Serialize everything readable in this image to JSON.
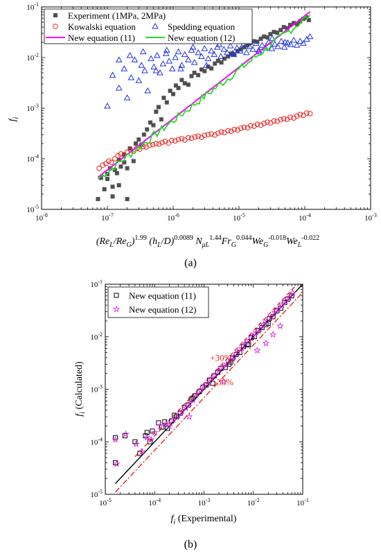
{
  "chart_data": [
    {
      "id": "a",
      "type": "scatter",
      "panel_label": "(a)",
      "xscale": "log",
      "yscale": "log",
      "xlim": [
        1e-08,
        0.001
      ],
      "ylim": [
        1e-05,
        0.1
      ],
      "xticks": [
        {
          "value": 1e-08,
          "mant": "10",
          "exp": "-8"
        },
        {
          "value": 1e-07,
          "mant": "10",
          "exp": "-7"
        },
        {
          "value": 1e-06,
          "mant": "10",
          "exp": "-6"
        },
        {
          "value": 1e-05,
          "mant": "10",
          "exp": "-5"
        },
        {
          "value": 0.0001,
          "mant": "10",
          "exp": "-4"
        },
        {
          "value": 0.001,
          "mant": "10",
          "exp": "-3"
        }
      ],
      "yticks": [
        {
          "value": 1e-05,
          "mant": "10",
          "exp": "-5"
        },
        {
          "value": 0.0001,
          "mant": "10",
          "exp": "-4"
        },
        {
          "value": 0.001,
          "mant": "10",
          "exp": "-3"
        },
        {
          "value": 0.01,
          "mant": "10",
          "exp": "-2"
        },
        {
          "value": 0.1,
          "mant": "10",
          "exp": "-1"
        }
      ],
      "ylabel": {
        "main": "f",
        "sub": "i"
      },
      "xlabel_parts": [
        {
          "t": "(Re",
          "i": true
        },
        {
          "t": "L",
          "i": true,
          "sub": true
        },
        {
          "t": "/Re",
          "i": true
        },
        {
          "t": "G",
          "i": true,
          "sub": true
        },
        {
          "t": ")",
          "i": true
        },
        {
          "t": "1.99",
          "sup": true
        },
        {
          "t": " (h",
          "i": true
        },
        {
          "t": "L",
          "i": true,
          "sub": true
        },
        {
          "t": "/D)",
          "i": true
        },
        {
          "t": "0.0089",
          "sup": true
        },
        {
          "t": " N",
          "i": true
        },
        {
          "t": "μL",
          "i": true,
          "sub": true
        },
        {
          "t": "1.44",
          "sup": true
        },
        {
          "t": "Fr",
          "i": true
        },
        {
          "t": "G",
          "i": true,
          "sub": true
        },
        {
          "t": "0.044",
          "sup": true
        },
        {
          "t": "We",
          "i": true
        },
        {
          "t": "G",
          "i": true,
          "sub": true
        },
        {
          "t": "-0.018",
          "sup": true
        },
        {
          "t": "We",
          "i": true
        },
        {
          "t": "L",
          "i": true,
          "sub": true
        },
        {
          "t": "-0.022",
          "sup": true
        }
      ],
      "legend_position": "top",
      "series": [
        {
          "name": "Experiment (1MPa, 2MPa)",
          "marker": "square-filled",
          "color": "#505050",
          "x": [
            7.2e-08,
            8e-08,
            9e-08,
            1e-07,
            1.1e-07,
            1.2e-07,
            1.3e-07,
            1.4e-07,
            1.5e-07,
            1.6e-07,
            1.8e-07,
            2e-07,
            2.2e-07,
            2.5e-07,
            2.7e-07,
            3e-07,
            3.3e-07,
            3.6e-07,
            4e-07,
            4.5e-07,
            5e-07,
            5.5e-07,
            6e-07,
            6.6e-07,
            7.2e-07,
            8e-07,
            9e-07,
            1e-06,
            1.1e-06,
            1.2e-06,
            1.35e-06,
            1.5e-06,
            1.7e-06,
            1.9e-06,
            2.1e-06,
            2.4e-06,
            2.7e-06,
            3e-06,
            3.4e-06,
            3.8e-06,
            4.3e-06,
            4.8e-06,
            5.4e-06,
            6e-06,
            6.8e-06,
            7.6e-06,
            8.5e-06,
            9.5e-06,
            1.07e-05,
            1.2e-05,
            1.35e-05,
            1.5e-05,
            1.7e-05,
            1.9e-05,
            2.15e-05,
            2.4e-05,
            2.7e-05,
            3e-05,
            3.4e-05,
            3.8e-05,
            4.3e-05,
            4.8e-05,
            5.4e-05,
            6e-05,
            6.8e-05,
            7.6e-05,
            8.5e-05,
            9.5e-05,
            0.000105,
            0.000115,
            1.5e-07,
            1.2e-07,
            2e-07,
            1.8e-07,
            1e-07
          ],
          "y": [
            1.6e-05,
            4.2e-05,
            2.5e-05,
            4e-05,
            6.5e-05,
            2.8e-05,
            6e-05,
            5.2e-05,
            9.5e-05,
            7e-05,
            0.00012,
            6.5e-05,
            0.00016,
            9e-05,
            0.0002,
            0.00024,
            0.00019,
            0.0003,
            0.00038,
            0.00052,
            0.00046,
            0.00085,
            0.00105,
            0.0006,
            0.0016,
            0.0013,
            0.0022,
            0.0019,
            0.0028,
            0.0025,
            0.0036,
            0.0031,
            0.0029,
            0.0043,
            0.005,
            0.0045,
            0.0058,
            0.0054,
            0.0066,
            0.0061,
            0.0076,
            0.0086,
            0.008,
            0.0095,
            0.0105,
            0.012,
            0.0115,
            0.0135,
            0.0145,
            0.016,
            0.0175,
            0.0195,
            0.021,
            0.0205,
            0.0235,
            0.026,
            0.025,
            0.029,
            0.032,
            0.031,
            0.035,
            0.04,
            0.038,
            0.044,
            0.048,
            0.046,
            0.052,
            0.058,
            0.062,
            0.055,
            3e-05,
            1.8e-05,
            1.6e-05,
            8.5e-05,
            5e-05
          ]
        },
        {
          "name": "Kowalski equation",
          "marker": "circle-open",
          "color": "#e8231e",
          "x": [
            7.5e-08,
            8.5e-08,
            9.5e-08,
            1.05e-07,
            1.15e-07,
            1.3e-07,
            1.45e-07,
            1.6e-07,
            1.8e-07,
            2e-07,
            2.25e-07,
            2.5e-07,
            2.8e-07,
            3.1e-07,
            3.5e-07,
            3.9e-07,
            4.4e-07,
            4.9e-07,
            5.5e-07,
            6.1e-07,
            6.8e-07,
            7.6e-07,
            8.5e-07,
            9.5e-07,
            1.07e-06,
            1.2e-06,
            1.35e-06,
            1.5e-06,
            1.7e-06,
            1.9e-06,
            2.15e-06,
            2.4e-06,
            2.7e-06,
            3e-06,
            3.4e-06,
            3.8e-06,
            4.3e-06,
            4.8e-06,
            5.4e-06,
            6e-06,
            6.8e-06,
            7.6e-06,
            8.5e-06,
            9.5e-06,
            1.07e-05,
            1.2e-05,
            1.35e-05,
            1.5e-05,
            1.7e-05,
            1.9e-05,
            2.15e-05,
            2.4e-05,
            2.7e-05,
            3e-05,
            3.4e-05,
            3.8e-05,
            4.3e-05,
            4.8e-05,
            5.4e-05,
            6e-05,
            6.8e-05,
            7.6e-05,
            8.5e-05,
            9.5e-05,
            0.000107,
            0.00012
          ],
          "y": [
            6.5e-05,
            7.5e-05,
            8e-05,
            9e-05,
            8.5e-05,
            0.0001,
            0.000115,
            0.000125,
            0.00012,
            0.000135,
            0.00015,
            0.00014,
            0.00016,
            0.000155,
            0.000175,
            0.00017,
            0.000185,
            0.00019,
            0.0002,
            0.000195,
            0.00021,
            0.00022,
            0.000205,
            0.00023,
            0.000225,
            0.00024,
            0.00025,
            0.000235,
            0.00026,
            0.000255,
            0.00027,
            0.00028,
            0.000265,
            0.00029,
            0.0003,
            0.00031,
            0.000295,
            0.00032,
            0.00034,
            0.00033,
            0.00036,
            0.00035,
            0.00038,
            0.00037,
            0.0004,
            0.00042,
            0.00041,
            0.00045,
            0.00044,
            0.00048,
            0.00046,
            0.0005,
            0.00053,
            0.00051,
            0.00056,
            0.00055,
            0.00059,
            0.00062,
            0.0006,
            0.00066,
            0.00064,
            0.0007,
            0.00075,
            0.00072,
            0.0008,
            0.00078
          ]
        },
        {
          "name": "Spedding equation",
          "marker": "triangle-open",
          "color": "#1e32e6",
          "x": [
            1e-07,
            1.2e-07,
            1.5e-07,
            1.8e-07,
            2e-07,
            2.3e-07,
            2.6e-07,
            3e-07,
            3.3e-07,
            3.7e-07,
            4.1e-07,
            4.6e-07,
            5.1e-07,
            5.7e-07,
            6.3e-07,
            7e-07,
            7.8e-07,
            8.7e-07,
            9.7e-07,
            1.08e-06,
            1.2e-06,
            1.35e-06,
            1.5e-06,
            1.7e-06,
            1.9e-06,
            2.1e-06,
            2.4e-06,
            2.7e-06,
            3e-06,
            3.4e-06,
            3.8e-06,
            4.2e-06,
            4.7e-06,
            5.3e-06,
            5.9e-06,
            6.6e-06,
            7.4e-06,
            8.3e-06,
            9.3e-06,
            1.04e-05,
            1.16e-05,
            1.3e-05,
            1.45e-05,
            1.62e-05,
            1.81e-05,
            2e-05,
            2.25e-05,
            2.5e-05,
            2.8e-05,
            3.15e-05,
            3.5e-05,
            3.9e-05,
            4.4e-05,
            4.9e-05,
            5.5e-05,
            6.1e-05,
            6.8e-05,
            7.6e-05,
            8.5e-05,
            9.5e-05,
            0.000107,
            0.00012,
            1.5e-07,
            2.2e-07,
            3.5e-07,
            5.5e-07,
            8e-07,
            1.3e-06,
            2e-06,
            3.2e-06,
            5e-06,
            8e-06,
            1.2e-05,
            2e-05,
            3.2e-05,
            5e-05
          ],
          "y": [
            0.0011,
            0.0045,
            0.0025,
            0.006,
            0.0016,
            0.004,
            0.009,
            0.0035,
            0.007,
            0.0055,
            0.0022,
            0.0095,
            0.0065,
            0.011,
            0.005,
            0.0075,
            0.012,
            0.0085,
            0.006,
            0.01,
            0.013,
            0.007,
            0.0115,
            0.009,
            0.014,
            0.008,
            0.0125,
            0.0105,
            0.015,
            0.0095,
            0.0135,
            0.0115,
            0.016,
            0.0105,
            0.0145,
            0.0125,
            0.017,
            0.0115,
            0.0155,
            0.0135,
            0.018,
            0.0125,
            0.0165,
            0.0145,
            0.019,
            0.014,
            0.0175,
            0.0155,
            0.02,
            0.015,
            0.0185,
            0.0165,
            0.021,
            0.016,
            0.0195,
            0.018,
            0.022,
            0.0175,
            0.021,
            0.019,
            0.023,
            0.026,
            0.009,
            0.011,
            0.013,
            0.0055,
            0.014,
            0.006,
            0.016,
            0.007,
            0.018,
            0.012,
            0.022,
            0.013,
            0.024,
            0.02
          ]
        },
        {
          "name": "New equation (11)",
          "marker": "line",
          "color": "#ff00ff",
          "x": [
            7.2e-08,
            0.00012
          ],
          "y": [
            4.3e-05,
            0.08
          ]
        },
        {
          "name": "New equation (12)",
          "marker": "line-jagged",
          "color": "#22dd22",
          "x": [
            7.2e-08,
            0.00012
          ],
          "y": [
            4e-05,
            0.07
          ]
        }
      ]
    },
    {
      "id": "b",
      "type": "scatter",
      "panel_label": "(b)",
      "xscale": "log",
      "yscale": "log",
      "xlim": [
        1e-05,
        0.1
      ],
      "ylim": [
        1e-05,
        0.1
      ],
      "xticks": [
        {
          "value": 1e-05,
          "mant": "10",
          "exp": "-5"
        },
        {
          "value": 0.0001,
          "mant": "10",
          "exp": "-4"
        },
        {
          "value": 0.001,
          "mant": "10",
          "exp": "-3"
        },
        {
          "value": 0.01,
          "mant": "10",
          "exp": "-2"
        },
        {
          "value": 0.1,
          "mant": "10",
          "exp": "-1"
        }
      ],
      "yticks": [
        {
          "value": 1e-05,
          "mant": "10",
          "exp": "-5"
        },
        {
          "value": 0.0001,
          "mant": "10",
          "exp": "-4"
        },
        {
          "value": 0.001,
          "mant": "10",
          "exp": "-3"
        },
        {
          "value": 0.01,
          "mant": "10",
          "exp": "-2"
        },
        {
          "value": 0.1,
          "mant": "10",
          "exp": "-1"
        }
      ],
      "xlabel": {
        "main": "f",
        "sub": "i",
        "rest": " (Experimental)"
      },
      "ylabel": {
        "main": "f",
        "sub": "i",
        "rest": " (Calculated)"
      },
      "legend_position": "top-left",
      "annotations": [
        {
          "text": "+30%",
          "color": "#e8231e",
          "x": 0.0022,
          "y": 0.0035
        },
        {
          "text": "-30%",
          "color": "#e8231e",
          "x": 0.0025,
          "y": 0.0012
        }
      ],
      "reference_lines": [
        {
          "kind": "solid",
          "color": "#000000",
          "x": [
            1.6e-05,
            0.1
          ],
          "y": [
            1.6e-05,
            0.1
          ]
        },
        {
          "kind": "dash-dot",
          "color": "#e8231e",
          "x": [
            1.6e-05,
            0.1
          ],
          "y": [
            1.1e-05,
            0.07
          ]
        },
        {
          "kind": "dash",
          "color": "#e8231e",
          "x": [
            4e-05,
            0.07
          ],
          "y": [
            5.2e-05,
            0.091
          ]
        }
      ],
      "series": [
        {
          "name": "New equation (11)",
          "marker": "square-open",
          "color": "#000000",
          "x": [
            1.6e-05,
            1.6e-05,
            2.5e-05,
            4e-05,
            5e-05,
            6.5e-05,
            8e-05,
            9e-05,
            0.00012,
            0.00016,
            0.00018,
            0.00022,
            0.00028,
            0.00033,
            0.0004,
            0.00048,
            0.00055,
            0.00065,
            0.0008,
            0.00095,
            0.0011,
            0.0013,
            0.0016,
            0.0019,
            0.0022,
            0.0027,
            0.0032,
            0.0038,
            0.0045,
            0.0053,
            0.0063,
            0.0075,
            0.009,
            0.0105,
            0.0125,
            0.015,
            0.018,
            0.021,
            0.025,
            0.03,
            0.036,
            0.043,
            0.05,
            0.06,
            7e-05,
            0.00014,
            0.00025,
            0.0006,
            0.0015,
            0.0035,
            0.008,
            0.02
          ],
          "y": [
            0.00012,
            4e-05,
            0.00013,
            0.0001,
            6e-05,
            0.00013,
            0.0001,
            0.00016,
            0.00023,
            0.00024,
            0.00018,
            0.00025,
            0.0003,
            0.00035,
            0.00045,
            0.0005,
            0.00065,
            0.00075,
            0.0009,
            0.0011,
            0.0012,
            0.0015,
            0.0018,
            0.0021,
            0.0025,
            0.0026,
            0.003,
            0.0039,
            0.0046,
            0.005,
            0.0065,
            0.0072,
            0.0095,
            0.01,
            0.013,
            0.015,
            0.017,
            0.022,
            0.024,
            0.031,
            0.035,
            0.045,
            0.052,
            0.06,
            0.00015,
            0.00019,
            0.00032,
            0.00068,
            0.0013,
            0.0033,
            0.007,
            0.018
          ]
        },
        {
          "name": "New equation (12)",
          "marker": "star-open",
          "color": "#e020e0",
          "x": [
            1.6e-05,
            1.7e-05,
            2.6e-05,
            4.2e-05,
            5.5e-05,
            7e-05,
            8.5e-05,
            0.0001,
            0.00013,
            0.00017,
            0.0002,
            0.00024,
            0.0003,
            0.00036,
            0.00043,
            0.00051,
            0.0006,
            0.0007,
            0.00085,
            0.001,
            0.0012,
            0.0014,
            0.0017,
            0.002,
            0.0024,
            0.0029,
            0.0035,
            0.0041,
            0.0049,
            0.0058,
            0.0069,
            0.0082,
            0.0098,
            0.0115,
            0.0135,
            0.016,
            0.019,
            0.023,
            0.027,
            0.032,
            0.038,
            0.045,
            0.053,
            0.063,
            0.012,
            0.018,
            0.025,
            0.035,
            0.0005,
            0.0025
          ],
          "y": [
            0.00011,
            3.8e-05,
            0.00014,
            9e-05,
            6.5e-05,
            0.00012,
            0.00011,
            0.00015,
            0.0002,
            0.00022,
            0.0002,
            0.00026,
            0.00032,
            0.00038,
            0.00044,
            0.00054,
            0.00062,
            0.0008,
            0.00095,
            0.00115,
            0.0013,
            0.0016,
            0.0019,
            0.0023,
            0.0026,
            0.003,
            0.0036,
            0.0042,
            0.0052,
            0.006,
            0.0075,
            0.0085,
            0.0105,
            0.012,
            0.014,
            0.017,
            0.02,
            0.024,
            0.029,
            0.034,
            0.04,
            0.048,
            0.056,
            0.068,
            0.0055,
            0.0075,
            0.011,
            0.016,
            0.0003,
            0.0014
          ]
        }
      ]
    }
  ]
}
